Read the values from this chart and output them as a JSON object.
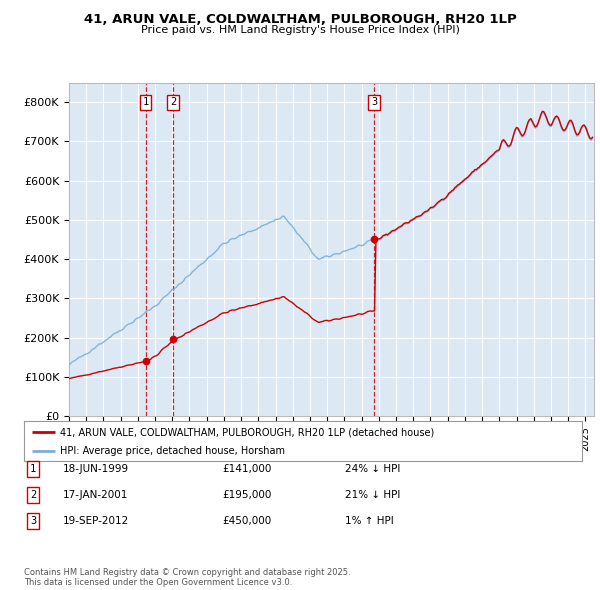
{
  "title": "41, ARUN VALE, COLDWALTHAM, PULBOROUGH, RH20 1LP",
  "subtitle": "Price paid vs. HM Land Registry's House Price Index (HPI)",
  "background_color": "#dce9f5",
  "grid_color": "#ffffff",
  "ylim": [
    0,
    850000
  ],
  "yticks": [
    0,
    100000,
    200000,
    300000,
    400000,
    500000,
    600000,
    700000,
    800000
  ],
  "ytick_labels": [
    "£0",
    "£100K",
    "£200K",
    "£300K",
    "£400K",
    "£500K",
    "£600K",
    "£700K",
    "£800K"
  ],
  "xlim_start": 1995.0,
  "xlim_end": 2025.5,
  "sale_dates": [
    1999.46,
    2001.05,
    2012.72
  ],
  "sale_prices": [
    141000,
    195000,
    450000
  ],
  "sale_labels": [
    "1",
    "2",
    "3"
  ],
  "vline_color": "#cc0000",
  "sale_marker_color": "#cc0000",
  "red_line_color": "#cc0000",
  "blue_line_color": "#7aafd4",
  "legend_label_red": "41, ARUN VALE, COLDWALTHAM, PULBOROUGH, RH20 1LP (detached house)",
  "legend_label_blue": "HPI: Average price, detached house, Horsham",
  "table_entries": [
    {
      "num": "1",
      "date": "18-JUN-1999",
      "price": "£141,000",
      "hpi": "24% ↓ HPI"
    },
    {
      "num": "2",
      "date": "17-JAN-2001",
      "price": "£195,000",
      "hpi": "21% ↓ HPI"
    },
    {
      "num": "3",
      "date": "19-SEP-2012",
      "price": "£450,000",
      "hpi": "1% ↑ HPI"
    }
  ],
  "footer": "Contains HM Land Registry data © Crown copyright and database right 2025.\nThis data is licensed under the Open Government Licence v3.0."
}
